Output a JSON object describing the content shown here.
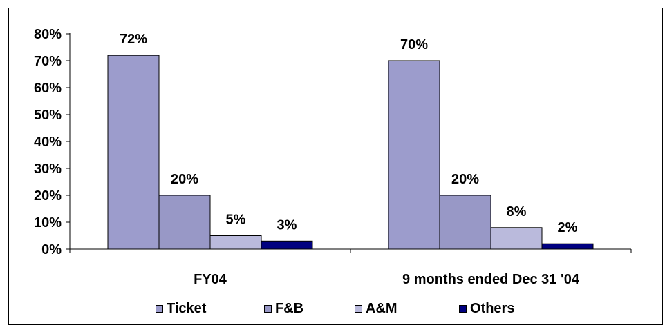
{
  "chart_data": {
    "type": "bar",
    "categories": [
      "FY04",
      "9 months ended Dec 31 '04"
    ],
    "series": [
      {
        "name": "Ticket",
        "values": [
          72,
          70
        ],
        "labels": [
          "72%",
          "70%"
        ],
        "color": "#9c9ccc"
      },
      {
        "name": "F&B",
        "values": [
          20,
          20
        ],
        "labels": [
          "20%",
          "20%"
        ],
        "color": "#9898c6"
      },
      {
        "name": "A&M",
        "values": [
          5,
          8
        ],
        "labels": [
          "5%",
          "8%"
        ],
        "color": "#babadc"
      },
      {
        "name": "Others",
        "values": [
          3,
          2
        ],
        "labels": [
          "3%",
          "2%"
        ],
        "color": "#000080"
      }
    ],
    "yticks": [
      "0%",
      "10%",
      "20%",
      "30%",
      "40%",
      "50%",
      "60%",
      "70%",
      "80%"
    ],
    "ylim": [
      0,
      80
    ],
    "ystep": 10,
    "grid": false,
    "legend": "bottom"
  }
}
